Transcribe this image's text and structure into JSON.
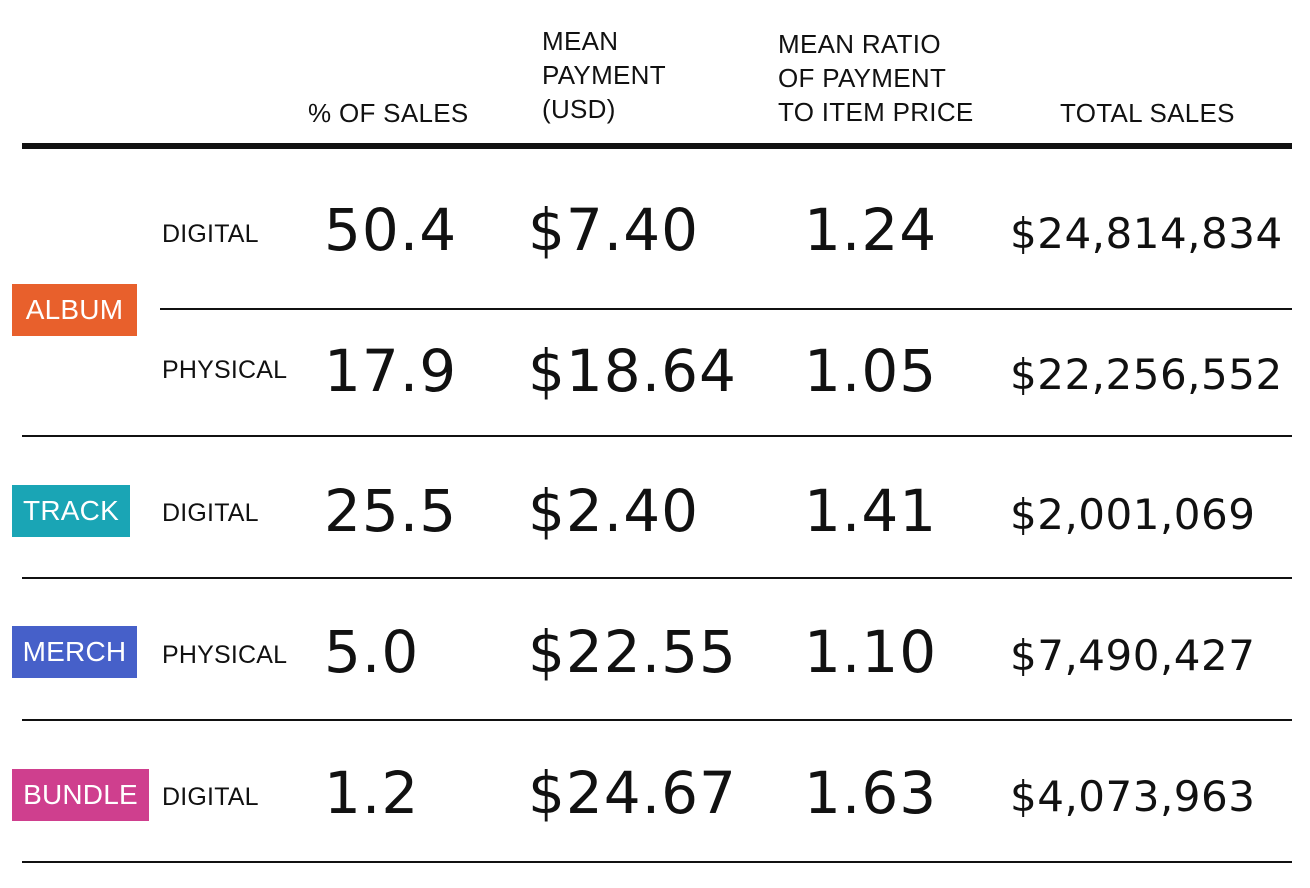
{
  "chart_data": {
    "type": "table",
    "columns": {
      "pct_of_sales": "% OF SALES",
      "mean_payment": "MEAN\nPAYMENT\n(USD)",
      "mean_ratio": "MEAN RATIO\nOF PAYMENT\nTO ITEM PRICE",
      "total_sales": "TOTAL SALES"
    },
    "categories": [
      {
        "label": "ALBUM",
        "color": "#E8602C"
      },
      {
        "label": "TRACK",
        "color": "#1AA5B5"
      },
      {
        "label": "MERCH",
        "color": "#4660C9"
      },
      {
        "label": "BUNDLE",
        "color": "#CF3F8E"
      }
    ],
    "rows": [
      {
        "category": "ALBUM",
        "format": "DIGITAL",
        "pct": "50.4",
        "mean": "$7.40",
        "ratio": "1.24",
        "total": "$24,814,834"
      },
      {
        "category": "ALBUM",
        "format": "PHYSICAL",
        "pct": "17.9",
        "mean": "$18.64",
        "ratio": "1.05",
        "total": "$22,256,552"
      },
      {
        "category": "TRACK",
        "format": "DIGITAL",
        "pct": "25.5",
        "mean": "$2.40",
        "ratio": "1.41",
        "total": "$2,001,069"
      },
      {
        "category": "MERCH",
        "format": "PHYSICAL",
        "pct": "5.0",
        "mean": "$22.55",
        "ratio": "1.10",
        "total": "$7,490,427"
      },
      {
        "category": "BUNDLE",
        "format": "DIGITAL",
        "pct": "1.2",
        "mean": "$24.67",
        "ratio": "1.63",
        "total": "$4,073,963"
      }
    ]
  }
}
